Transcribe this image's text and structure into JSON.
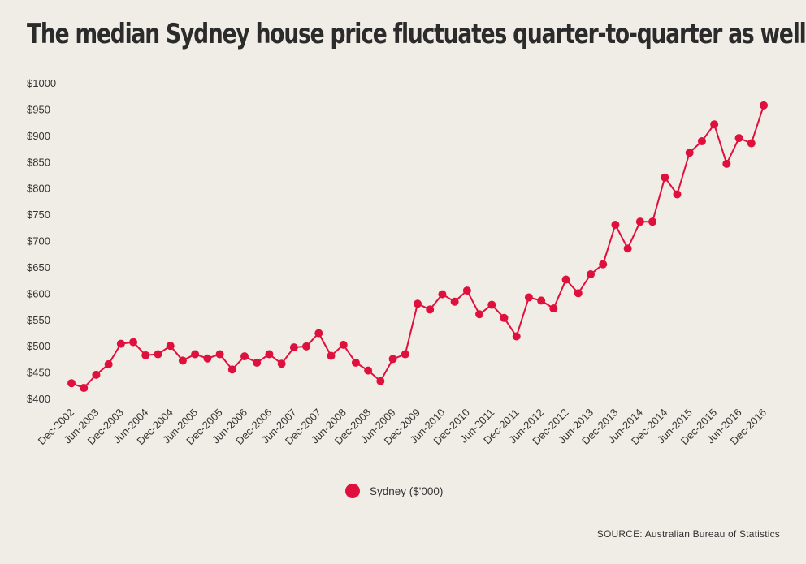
{
  "chart_data": {
    "type": "line",
    "title": "The median Sydney house price fluctuates quarter-to-quarter as well",
    "xlabel": "",
    "ylabel": "",
    "x": [
      "Dec-2002",
      "Mar-2003",
      "Jun-2003",
      "Sep-2003",
      "Dec-2003",
      "Mar-2004",
      "Jun-2004",
      "Sep-2004",
      "Dec-2004",
      "Mar-2005",
      "Jun-2005",
      "Sep-2005",
      "Dec-2005",
      "Mar-2006",
      "Jun-2006",
      "Sep-2006",
      "Dec-2006",
      "Mar-2007",
      "Jun-2007",
      "Sep-2007",
      "Dec-2007",
      "Mar-2008",
      "Jun-2008",
      "Sep-2008",
      "Dec-2008",
      "Mar-2009",
      "Jun-2009",
      "Sep-2009",
      "Dec-2009",
      "Mar-2010",
      "Jun-2010",
      "Sep-2010",
      "Dec-2010",
      "Mar-2011",
      "Jun-2011",
      "Sep-2011",
      "Dec-2011",
      "Mar-2012",
      "Jun-2012",
      "Sep-2012",
      "Dec-2012",
      "Mar-2013",
      "Jun-2013",
      "Sep-2013",
      "Dec-2013",
      "Mar-2014",
      "Jun-2014",
      "Sep-2014",
      "Dec-2014",
      "Mar-2015",
      "Jun-2015",
      "Sep-2015",
      "Dec-2015",
      "Mar-2016",
      "Jun-2016",
      "Sep-2016",
      "Dec-2016"
    ],
    "tick_labels": [
      "Dec-2002",
      "Jun-2003",
      "Dec-2003",
      "Jun-2004",
      "Dec-2004",
      "Jun-2005",
      "Dec-2005",
      "Jun-2006",
      "Dec-2006",
      "Jun-2007",
      "Dec-2007",
      "Jun-2008",
      "Dec-2008",
      "Jun-2009",
      "Dec-2009",
      "Jun-2010",
      "Dec-2010",
      "Jun-2011",
      "Dec-2011",
      "Jun-2012",
      "Dec-2012",
      "Jun-2013",
      "Dec-2013",
      "Jun-2014",
      "Dec-2014",
      "Jun-2015",
      "Dec-2015",
      "Jun-2016",
      "Dec-2016"
    ],
    "series": [
      {
        "name": "Sydney ($'000)",
        "color": "#e0103d",
        "values": [
          429,
          420,
          445,
          465,
          504,
          507,
          482,
          484,
          500,
          472,
          484,
          476,
          484,
          455,
          480,
          468,
          484,
          466,
          497,
          499,
          524,
          481,
          502,
          468,
          453,
          433,
          475,
          484,
          580,
          569,
          598,
          584,
          605,
          560,
          578,
          553,
          518,
          592,
          586,
          571,
          626,
          600,
          636,
          655,
          730,
          685,
          736,
          736,
          820,
          788,
          867,
          889,
          921,
          846,
          895,
          885,
          957
        ]
      }
    ],
    "ylim": [
      400,
      1000
    ],
    "y_ticks": [
      "$400",
      "$450",
      "$500",
      "$550",
      "$600",
      "$650",
      "$700",
      "$750",
      "$800",
      "$850",
      "$900",
      "$950",
      "$1000"
    ],
    "grid": false,
    "legend_position": "bottom-center"
  },
  "legend": {
    "label": "Sydney ($'000)",
    "color": "#e0103d"
  },
  "source": "SOURCE: Australian Bureau of Statistics"
}
